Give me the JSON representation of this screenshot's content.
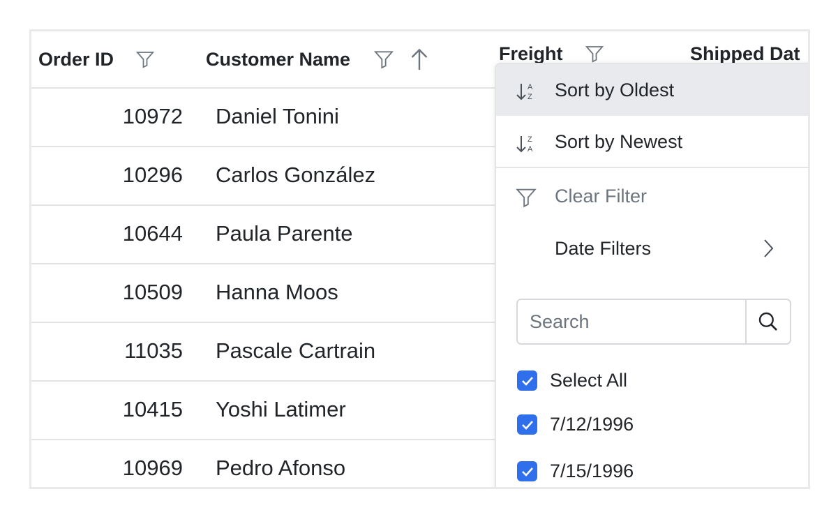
{
  "grid": {
    "columns": [
      {
        "label": "Order ID",
        "filter_icon": "filter-icon"
      },
      {
        "label": "Customer Name",
        "filter_icon": "filter-icon",
        "sort_icon": "arrow-up-icon"
      },
      {
        "label": "Freight",
        "filter_icon": "filter-icon"
      },
      {
        "label": "Shipped Dat"
      }
    ],
    "rows": [
      {
        "order_id": "10972",
        "customer": "Daniel Tonini"
      },
      {
        "order_id": "10296",
        "customer": "Carlos González"
      },
      {
        "order_id": "10644",
        "customer": "Paula Parente"
      },
      {
        "order_id": "10509",
        "customer": "Hanna Moos"
      },
      {
        "order_id": "11035",
        "customer": "Pascale Cartrain"
      },
      {
        "order_id": "10415",
        "customer": "Yoshi Latimer"
      },
      {
        "order_id": "10969",
        "customer": "Pedro Afonso"
      }
    ]
  },
  "menu": {
    "sort_oldest": "Sort by Oldest",
    "sort_newest": "Sort by Newest",
    "clear_filter": "Clear Filter",
    "date_filters": "Date Filters",
    "search_placeholder": "Search",
    "checkboxes": [
      {
        "label": "Select All",
        "checked": true
      },
      {
        "label": "7/12/1996",
        "checked": true
      },
      {
        "label": "7/15/1996",
        "checked": true
      }
    ]
  },
  "colors": {
    "accent": "#2f6fec",
    "hover": "#e9eaee"
  }
}
